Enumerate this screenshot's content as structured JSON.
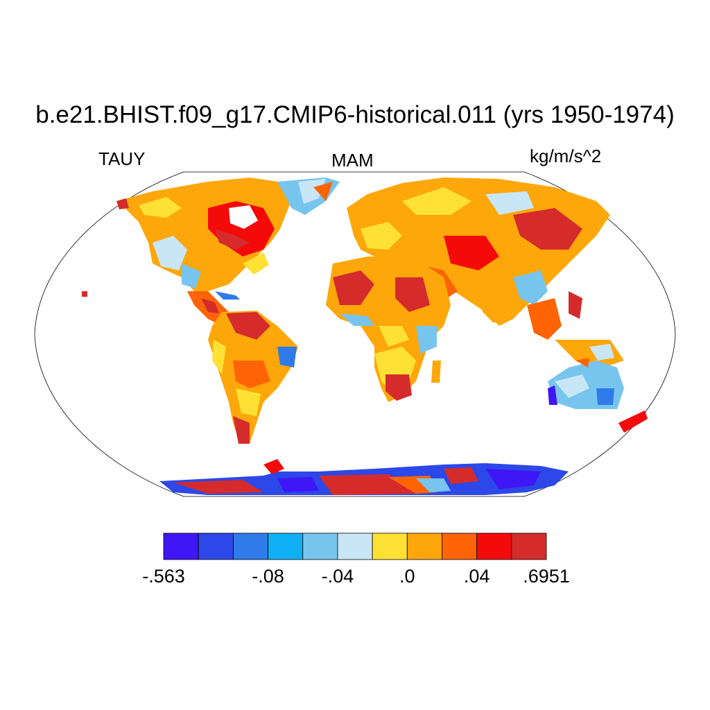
{
  "title": "b.e21.BHIST.f09_g17.CMIP6-historical.011 (yrs 1950-1974)",
  "variable": "TAUY",
  "season": "MAM",
  "units": "kg/m/s^2",
  "projection": "Robinson",
  "colorbar": {
    "colors": [
      "#3f16f5",
      "#2c48e8",
      "#2f7be9",
      "#0fb0f5",
      "#77c5ee",
      "#c9e6f7",
      "#ffe135",
      "#fea70a",
      "#fe6406",
      "#f50a0a",
      "#d52b2b"
    ],
    "labels": [
      {
        "value": "-.563",
        "boundary": 0
      },
      {
        "value": "-.08",
        "boundary": 3
      },
      {
        "value": "-.04",
        "boundary": 5
      },
      {
        "value": ".0",
        "boundary": 7
      },
      {
        "value": ".04",
        "boundary": 9
      },
      {
        "value": ".6951",
        "boundary": 11
      }
    ]
  }
}
